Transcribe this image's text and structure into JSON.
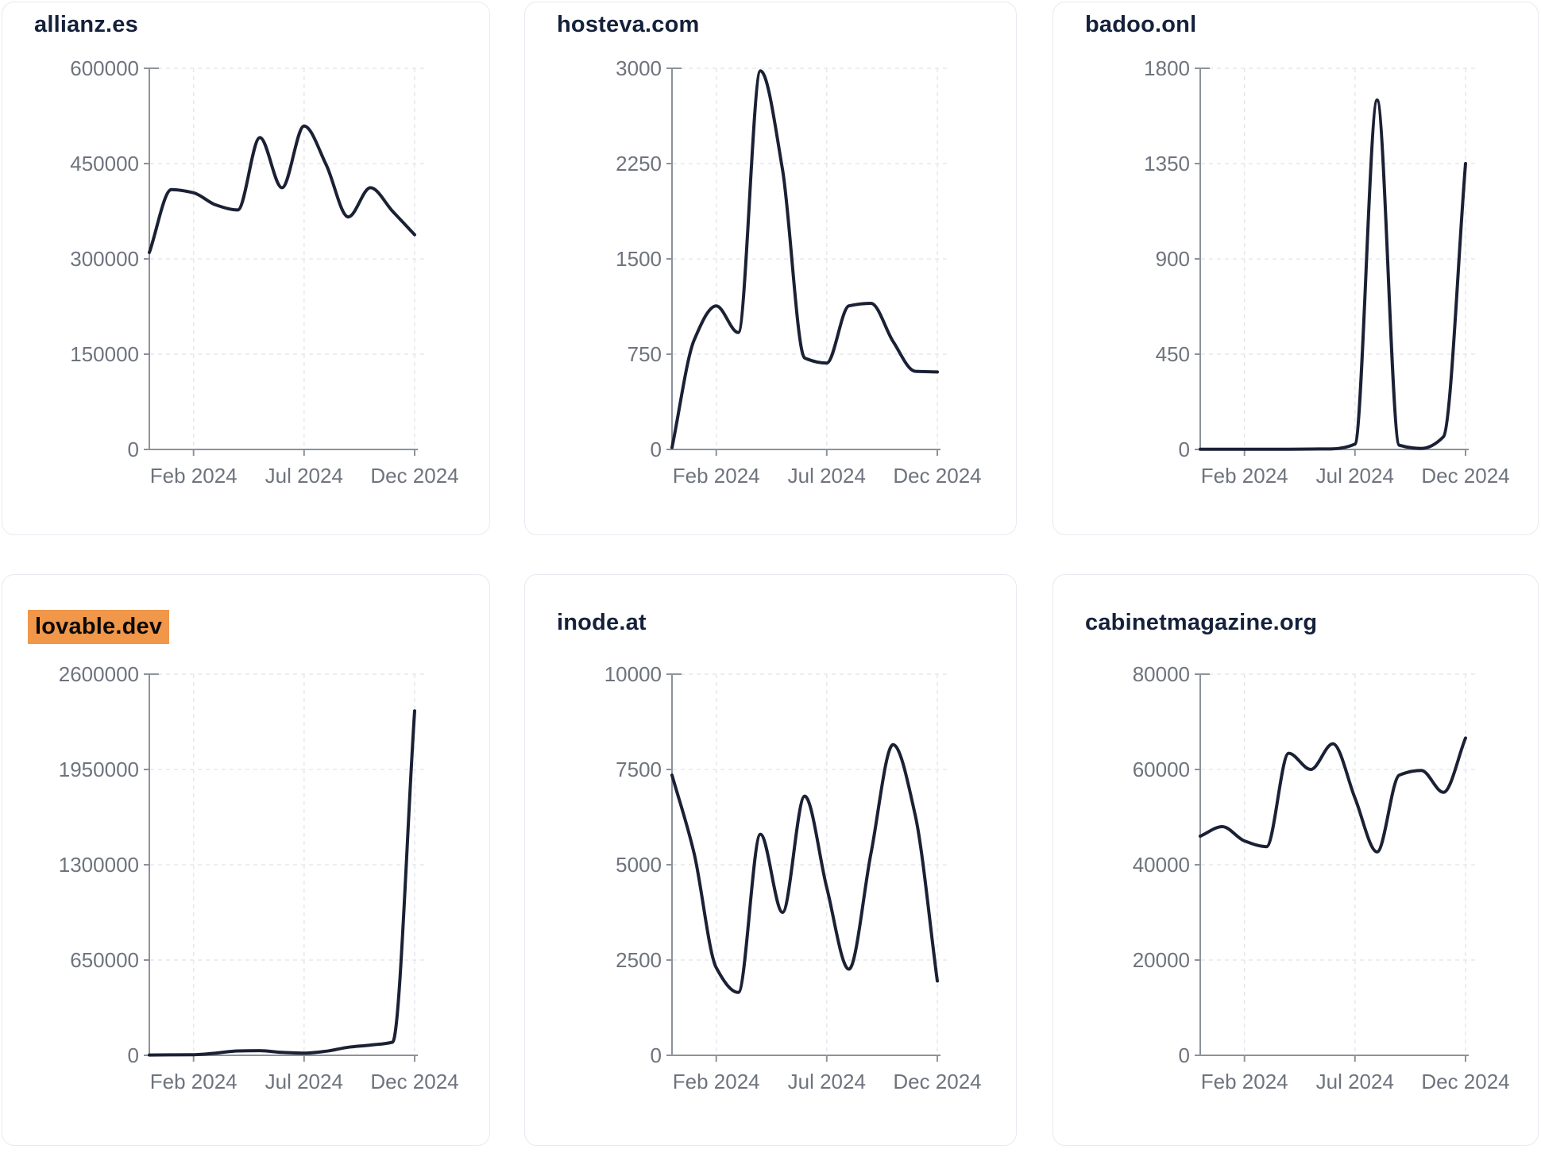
{
  "page": {
    "background": "#ffffff",
    "card_border_color": "#e7eaf1",
    "grid_color": "#e5e8ee",
    "axis_color": "#8d929b",
    "tick_text_color": "#6e737d",
    "title_color": "#15213b",
    "line_color": "#1b2135",
    "highlight_color": "#f0974a"
  },
  "months": [
    "Dec 2023",
    "Jan 2024",
    "Feb 2024",
    "Mar 2024",
    "Apr 2024",
    "May 2024",
    "Jun 2024",
    "Jul 2024",
    "Aug 2024",
    "Sep 2024",
    "Oct 2024",
    "Nov 2024",
    "Dec 2024"
  ],
  "chart_data": [
    {
      "type": "line",
      "title": "allianz.es",
      "title_highlighted": false,
      "x": [
        "Dec 2023",
        "Jan 2024",
        "Feb 2024",
        "Mar 2024",
        "Apr 2024",
        "May 2024",
        "Jun 2024",
        "Jul 2024",
        "Aug 2024",
        "Sep 2024",
        "Oct 2024",
        "Nov 2024",
        "Dec 2024"
      ],
      "values": [
        310000,
        409000,
        404000,
        385000,
        377000,
        491000,
        412000,
        509000,
        448000,
        366000,
        412000,
        375000,
        338000
      ],
      "ylim": [
        0,
        600000
      ],
      "y_ticks": [
        0,
        150000,
        300000,
        450000,
        600000
      ],
      "x_tick_labels": [
        "Feb 2024",
        "Jul 2024",
        "Dec 2024"
      ],
      "grid": true,
      "legend": "none"
    },
    {
      "type": "line",
      "title": "hosteva.com",
      "title_highlighted": false,
      "x": [
        "Dec 2023",
        "Jan 2024",
        "Feb 2024",
        "Mar 2024",
        "Apr 2024",
        "May 2024",
        "Jun 2024",
        "Jul 2024",
        "Aug 2024",
        "Sep 2024",
        "Oct 2024",
        "Nov 2024",
        "Dec 2024"
      ],
      "values": [
        15,
        860,
        1130,
        920,
        2980,
        2200,
        720,
        680,
        1130,
        1150,
        850,
        615,
        610
      ],
      "ylim": [
        0,
        3000
      ],
      "y_ticks": [
        0,
        750,
        1500,
        2250,
        3000
      ],
      "x_tick_labels": [
        "Feb 2024",
        "Jul 2024",
        "Dec 2024"
      ],
      "grid": true,
      "legend": "none"
    },
    {
      "type": "line",
      "title": "badoo.onl",
      "title_highlighted": false,
      "x": [
        "Dec 2023",
        "Jan 2024",
        "Feb 2024",
        "Mar 2024",
        "Apr 2024",
        "May 2024",
        "Jun 2024",
        "Jul 2024",
        "Aug 2024",
        "Sep 2024",
        "Oct 2024",
        "Nov 2024",
        "Dec 2024"
      ],
      "values": [
        1,
        1,
        1,
        1,
        1,
        2,
        3,
        25,
        1650,
        20,
        5,
        60,
        1350
      ],
      "ylim": [
        0,
        1800
      ],
      "y_ticks": [
        0,
        450,
        900,
        1350,
        1800
      ],
      "x_tick_labels": [
        "Feb 2024",
        "Jul 2024",
        "Dec 2024"
      ],
      "grid": true,
      "legend": "none"
    },
    {
      "type": "line",
      "title": "lovable.dev",
      "title_highlighted": true,
      "x": [
        "Dec 2023",
        "Jan 2024",
        "Feb 2024",
        "Mar 2024",
        "Apr 2024",
        "May 2024",
        "Jun 2024",
        "Jul 2024",
        "Aug 2024",
        "Sep 2024",
        "Oct 2024",
        "Nov 2024",
        "Dec 2024"
      ],
      "values": [
        2000,
        3000,
        4000,
        15000,
        30000,
        32000,
        20000,
        15000,
        28000,
        55000,
        70000,
        90000,
        2350000
      ],
      "ylim": [
        0,
        2600000
      ],
      "y_ticks": [
        0,
        650000,
        1300000,
        1950000,
        2600000
      ],
      "x_tick_labels": [
        "Feb 2024",
        "Jul 2024",
        "Dec 2024"
      ],
      "grid": true,
      "legend": "none"
    },
    {
      "type": "line",
      "title": "inode.at",
      "title_highlighted": false,
      "x": [
        "Dec 2023",
        "Jan 2024",
        "Feb 2024",
        "Mar 2024",
        "Apr 2024",
        "May 2024",
        "Jun 2024",
        "Jul 2024",
        "Aug 2024",
        "Sep 2024",
        "Oct 2024",
        "Nov 2024",
        "Dec 2024"
      ],
      "values": [
        7350,
        5300,
        2300,
        1650,
        5800,
        3750,
        6800,
        4400,
        2260,
        5300,
        8150,
        6300,
        1950
      ],
      "ylim": [
        0,
        10000
      ],
      "y_ticks": [
        0,
        2500,
        5000,
        7500,
        10000
      ],
      "x_tick_labels": [
        "Feb 2024",
        "Jul 2024",
        "Dec 2024"
      ],
      "grid": true,
      "legend": "none"
    },
    {
      "type": "line",
      "title": "cabinetmagazine.org",
      "title_highlighted": false,
      "x": [
        "Dec 2023",
        "Jan 2024",
        "Feb 2024",
        "Mar 2024",
        "Apr 2024",
        "May 2024",
        "Jun 2024",
        "Jul 2024",
        "Aug 2024",
        "Sep 2024",
        "Oct 2024",
        "Nov 2024",
        "Dec 2024"
      ],
      "values": [
        46000,
        48000,
        45000,
        43800,
        63400,
        60000,
        65400,
        54000,
        42700,
        58800,
        59800,
        55200,
        66600
      ],
      "ylim": [
        0,
        80000
      ],
      "y_ticks": [
        0,
        20000,
        40000,
        60000,
        80000
      ],
      "x_tick_labels": [
        "Feb 2024",
        "Jul 2024",
        "Dec 2024"
      ],
      "grid": true,
      "legend": "none"
    }
  ]
}
